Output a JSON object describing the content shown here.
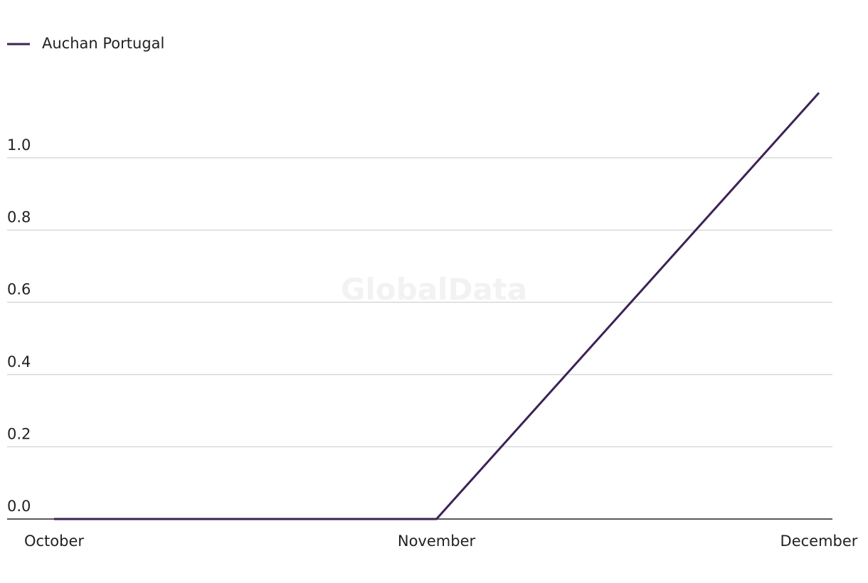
{
  "chart_data": {
    "type": "line",
    "watermark": "GlobalData",
    "categories": [
      "October",
      "November",
      "December"
    ],
    "series": [
      {
        "name": "Auchan Portugal",
        "color": "#3b2356",
        "values": [
          0,
          0,
          1.18
        ]
      }
    ],
    "ylim": [
      0,
      1.2
    ],
    "yticks": [
      {
        "value": 0,
        "label": "0.0"
      },
      0.2,
      0.4,
      0.6,
      0.8,
      {
        "value": 1,
        "label": "1.0"
      }
    ],
    "grid": true
  }
}
